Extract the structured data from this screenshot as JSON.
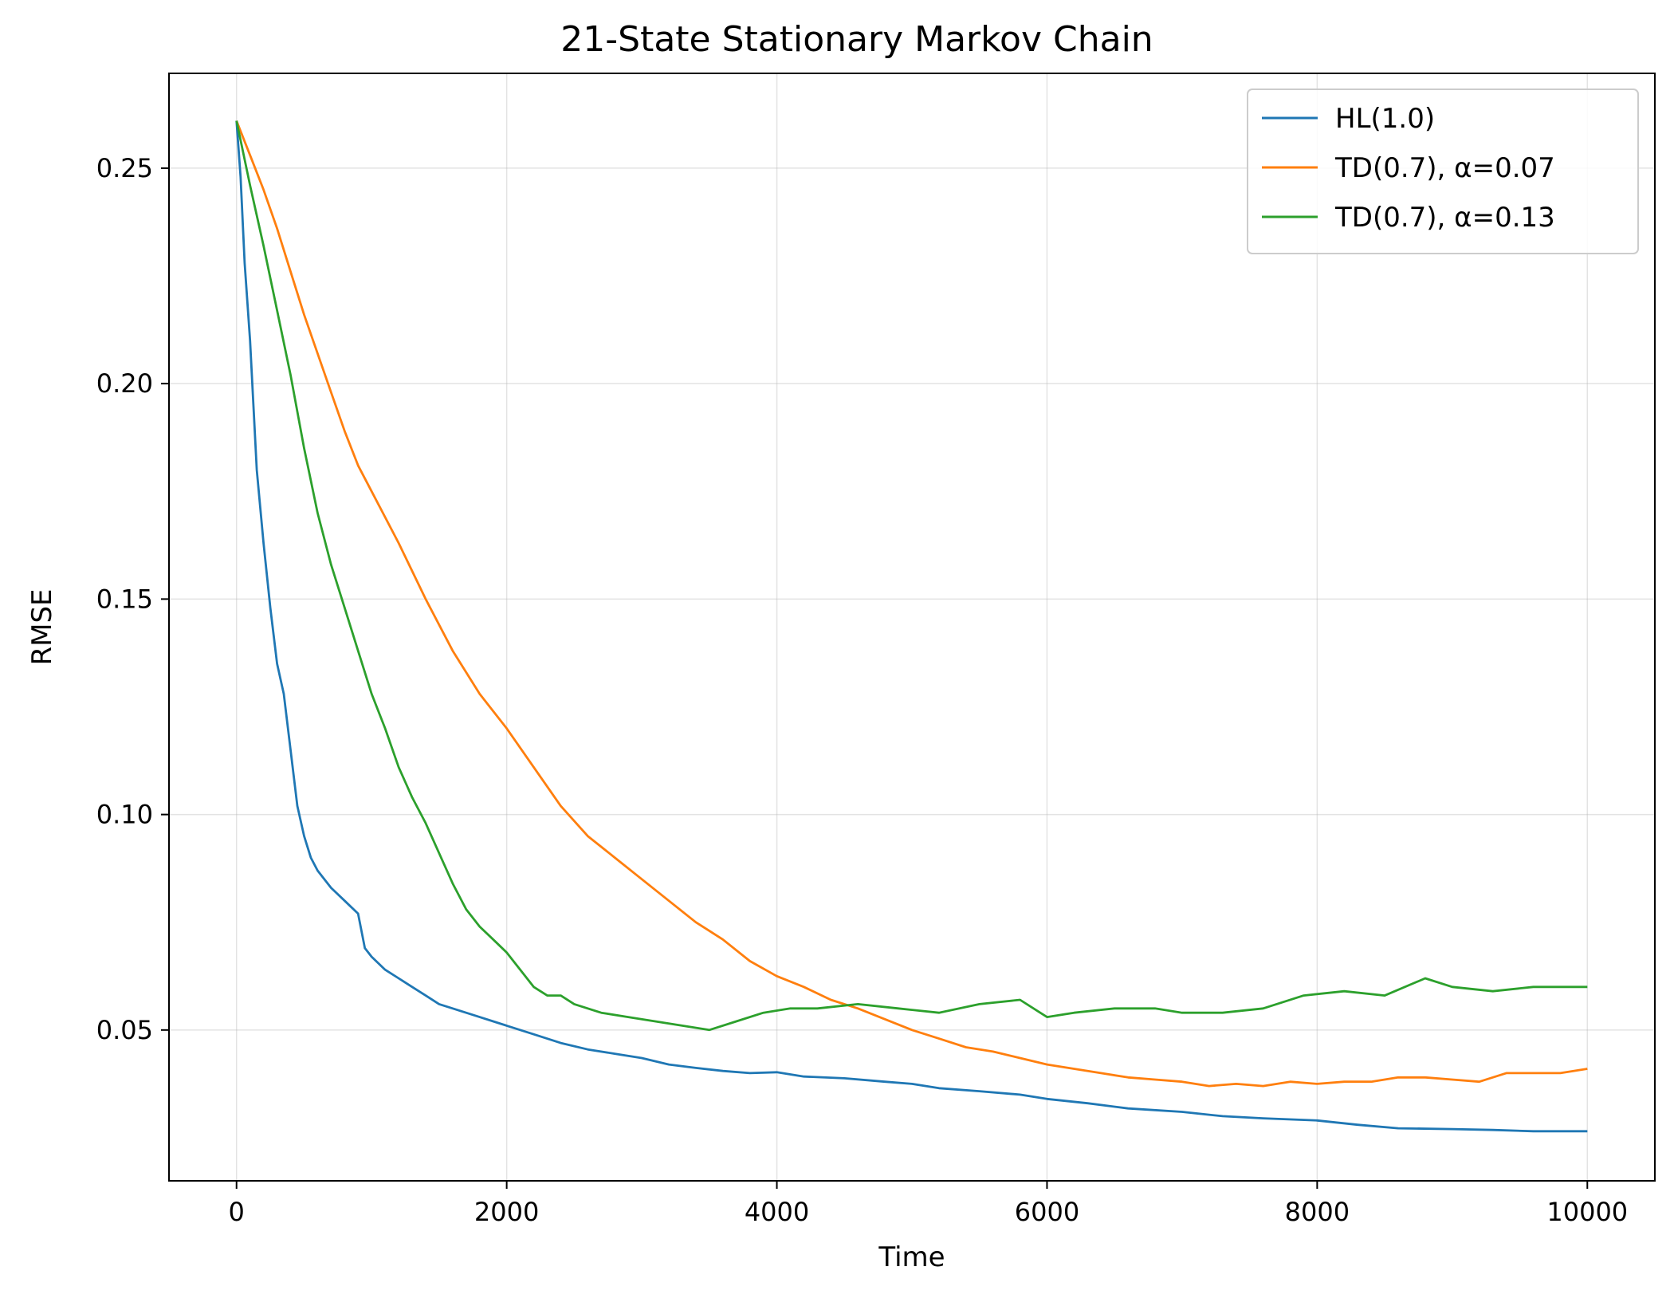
{
  "chart_data": {
    "type": "line",
    "title": "21-State Stationary Markov Chain",
    "xlabel": "Time",
    "ylabel": "RMSE",
    "xlim": [
      -500,
      10500
    ],
    "ylim": [
      0.015,
      0.272
    ],
    "xticks": [
      0,
      2000,
      4000,
      6000,
      8000,
      10000
    ],
    "xtick_labels": [
      "0",
      "2000",
      "4000",
      "6000",
      "8000",
      "10000"
    ],
    "yticks": [
      0.05,
      0.1,
      0.15,
      0.2,
      0.25
    ],
    "ytick_labels": [
      "0.05",
      "0.10",
      "0.15",
      "0.20",
      "0.25"
    ],
    "grid": true,
    "legend_position": "top-right",
    "series": [
      {
        "name": "HL(1.0)",
        "color": "#1f77b4",
        "x": [
          0,
          30,
          60,
          100,
          150,
          200,
          250,
          300,
          350,
          400,
          450,
          500,
          550,
          600,
          700,
          800,
          900,
          950,
          1000,
          1100,
          1200,
          1300,
          1400,
          1500,
          1600,
          1700,
          1800,
          1900,
          2000,
          2200,
          2400,
          2600,
          2800,
          3000,
          3200,
          3400,
          3600,
          3800,
          4000,
          4200,
          4500,
          4800,
          5000,
          5200,
          5500,
          5800,
          6000,
          6300,
          6600,
          7000,
          7300,
          7600,
          8000,
          8300,
          8600,
          9000,
          9300,
          9600,
          10000
        ],
        "y": [
          0.261,
          0.248,
          0.228,
          0.21,
          0.18,
          0.163,
          0.148,
          0.135,
          0.128,
          0.115,
          0.102,
          0.095,
          0.09,
          0.087,
          0.083,
          0.08,
          0.077,
          0.069,
          0.067,
          0.064,
          0.062,
          0.06,
          0.058,
          0.056,
          0.055,
          0.054,
          0.053,
          0.052,
          0.051,
          0.049,
          0.047,
          0.0455,
          0.0445,
          0.0435,
          0.042,
          0.0412,
          0.0405,
          0.04,
          0.0402,
          0.0392,
          0.0388,
          0.038,
          0.0375,
          0.0365,
          0.0358,
          0.035,
          0.034,
          0.033,
          0.0318,
          0.031,
          0.03,
          0.0295,
          0.029,
          0.028,
          0.0272,
          0.027,
          0.0268,
          0.0265,
          0.0265
        ]
      },
      {
        "name": "TD(0.7), α=0.07",
        "color": "#ff7f0e",
        "x": [
          0,
          100,
          200,
          300,
          400,
          500,
          600,
          700,
          800,
          900,
          1000,
          1200,
          1400,
          1600,
          1800,
          2000,
          2200,
          2400,
          2600,
          2800,
          3000,
          3200,
          3400,
          3600,
          3800,
          4000,
          4200,
          4400,
          4600,
          4800,
          5000,
          5200,
          5400,
          5600,
          5800,
          6000,
          6200,
          6400,
          6600,
          6800,
          7000,
          7200,
          7400,
          7600,
          7800,
          8000,
          8200,
          8400,
          8600,
          8800,
          9000,
          9200,
          9400,
          9600,
          9800,
          10000
        ],
        "y": [
          0.261,
          0.253,
          0.245,
          0.236,
          0.226,
          0.216,
          0.207,
          0.198,
          0.189,
          0.181,
          0.175,
          0.163,
          0.15,
          0.138,
          0.128,
          0.12,
          0.111,
          0.102,
          0.095,
          0.09,
          0.085,
          0.08,
          0.075,
          0.071,
          0.066,
          0.0625,
          0.06,
          0.057,
          0.055,
          0.0525,
          0.05,
          0.048,
          0.046,
          0.045,
          0.0435,
          0.042,
          0.041,
          0.04,
          0.039,
          0.0385,
          0.038,
          0.037,
          0.0375,
          0.037,
          0.038,
          0.0375,
          0.038,
          0.038,
          0.039,
          0.039,
          0.0385,
          0.038,
          0.04,
          0.04,
          0.04,
          0.041
        ]
      },
      {
        "name": "TD(0.7), α=0.13",
        "color": "#2ca02c",
        "x": [
          0,
          100,
          200,
          300,
          400,
          500,
          600,
          700,
          800,
          900,
          1000,
          1100,
          1200,
          1300,
          1400,
          1500,
          1600,
          1700,
          1800,
          1900,
          2000,
          2100,
          2200,
          2300,
          2400,
          2500,
          2700,
          2900,
          3100,
          3300,
          3500,
          3700,
          3900,
          4100,
          4300,
          4600,
          4900,
          5200,
          5500,
          5800,
          6000,
          6200,
          6500,
          6800,
          7000,
          7300,
          7600,
          7900,
          8200,
          8500,
          8800,
          9000,
          9300,
          9600,
          10000
        ],
        "y": [
          0.261,
          0.246,
          0.232,
          0.217,
          0.202,
          0.185,
          0.17,
          0.158,
          0.148,
          0.138,
          0.128,
          0.12,
          0.111,
          0.104,
          0.098,
          0.091,
          0.084,
          0.078,
          0.074,
          0.071,
          0.068,
          0.064,
          0.06,
          0.058,
          0.058,
          0.056,
          0.054,
          0.053,
          0.052,
          0.051,
          0.05,
          0.052,
          0.054,
          0.055,
          0.055,
          0.056,
          0.055,
          0.054,
          0.056,
          0.057,
          0.053,
          0.054,
          0.055,
          0.055,
          0.054,
          0.054,
          0.055,
          0.058,
          0.059,
          0.058,
          0.062,
          0.06,
          0.059,
          0.06,
          0.06
        ]
      }
    ]
  }
}
